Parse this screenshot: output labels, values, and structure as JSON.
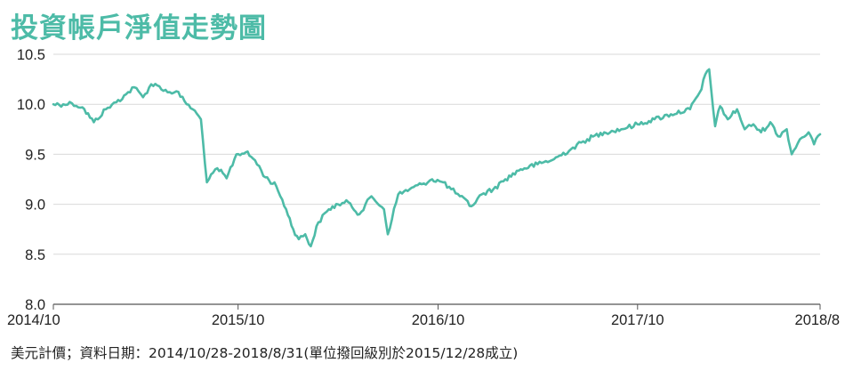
{
  "title": "投資帳戶淨值走勢圖",
  "footnote": "美元計價；資料日期：2014/10/28-2018/8/31(單位撥回級別於2015/12/28成立)",
  "colors": {
    "accent": "#4dbba7",
    "grid": "#d9d9d9",
    "axis": "#555555",
    "text": "#222222"
  },
  "chart_data": {
    "type": "line",
    "title": "投資帳戶淨值走勢圖",
    "xlabel": "",
    "ylabel": "",
    "ylim": [
      8.0,
      10.5
    ],
    "yticks": [
      "8.0",
      "8.5",
      "9.0",
      "9.5",
      "10.0",
      "10.5"
    ],
    "xlim": [
      "2014/10/28",
      "2018/8/31"
    ],
    "xticks": [
      {
        "label": "2014/10",
        "date": "2014/10/28"
      },
      {
        "label": "2015/10",
        "date": "2015/10/01"
      },
      {
        "label": "2016/10",
        "date": "2016/10/01"
      },
      {
        "label": "2017/10",
        "date": "2017/10/01"
      },
      {
        "label": "2018/8",
        "date": "2018/08/31"
      }
    ],
    "grid": true,
    "series": [
      {
        "x": [
          "2014/10/28",
          "2014/11/15",
          "2014/12/01",
          "2014/12/20",
          "2015/01/10",
          "2015/02/01",
          "2015/02/20",
          "2015/03/10",
          "2015/03/25",
          "2015/04/10",
          "2015/04/25",
          "2015/05/10",
          "2015/05/25",
          "2015/06/10",
          "2015/06/25",
          "2015/07/10",
          "2015/07/25",
          "2015/08/05",
          "2015/08/24",
          "2015/09/10",
          "2015/09/28",
          "2015/10/15",
          "2015/11/01",
          "2015/11/20",
          "2015/12/10",
          "2015/12/28",
          "2016/01/10",
          "2016/01/20",
          "2016/02/01",
          "2016/02/11",
          "2016/02/25",
          "2016/03/15",
          "2016/04/01",
          "2016/04/20",
          "2016/05/10",
          "2016/06/01",
          "2016/06/24",
          "2016/07/01",
          "2016/07/20",
          "2016/08/10",
          "2016/09/01",
          "2016/09/20",
          "2016/10/10",
          "2016/10/25",
          "2016/11/10",
          "2016/12/01",
          "2016/12/20",
          "2017/01/10",
          "2017/02/01",
          "2017/03/01",
          "2017/04/01",
          "2017/05/01",
          "2017/06/01",
          "2017/07/01",
          "2017/08/01",
          "2017/09/01",
          "2017/10/01",
          "2017/11/01",
          "2017/12/01",
          "2018/01/05",
          "2018/01/26",
          "2018/02/02",
          "2018/02/09",
          "2018/02/20",
          "2018/03/01",
          "2018/03/15",
          "2018/04/01",
          "2018/04/15",
          "2018/05/01",
          "2018/05/15",
          "2018/06/01",
          "2018/06/15",
          "2018/07/01",
          "2018/07/10",
          "2018/07/25",
          "2018/08/10",
          "2018/08/20",
          "2018/08/31"
        ],
        "values": [
          10.0,
          10.0,
          10.01,
          9.97,
          9.82,
          9.95,
          10.02,
          10.1,
          10.17,
          10.07,
          10.2,
          10.18,
          10.12,
          10.13,
          10.03,
          9.95,
          9.85,
          9.22,
          9.36,
          9.26,
          9.5,
          9.52,
          9.44,
          9.27,
          9.18,
          8.95,
          8.75,
          8.65,
          8.7,
          8.58,
          8.82,
          8.95,
          9.0,
          9.02,
          8.9,
          9.08,
          8.95,
          8.7,
          9.1,
          9.15,
          9.2,
          9.25,
          9.22,
          9.15,
          9.08,
          8.98,
          9.1,
          9.15,
          9.25,
          9.35,
          9.4,
          9.45,
          9.55,
          9.65,
          9.72,
          9.75,
          9.8,
          9.85,
          9.9,
          9.95,
          10.15,
          10.3,
          10.35,
          9.78,
          9.98,
          9.85,
          9.95,
          9.75,
          9.8,
          9.72,
          9.82,
          9.68,
          9.75,
          9.5,
          9.65,
          9.72,
          9.6,
          9.7
        ]
      }
    ]
  }
}
